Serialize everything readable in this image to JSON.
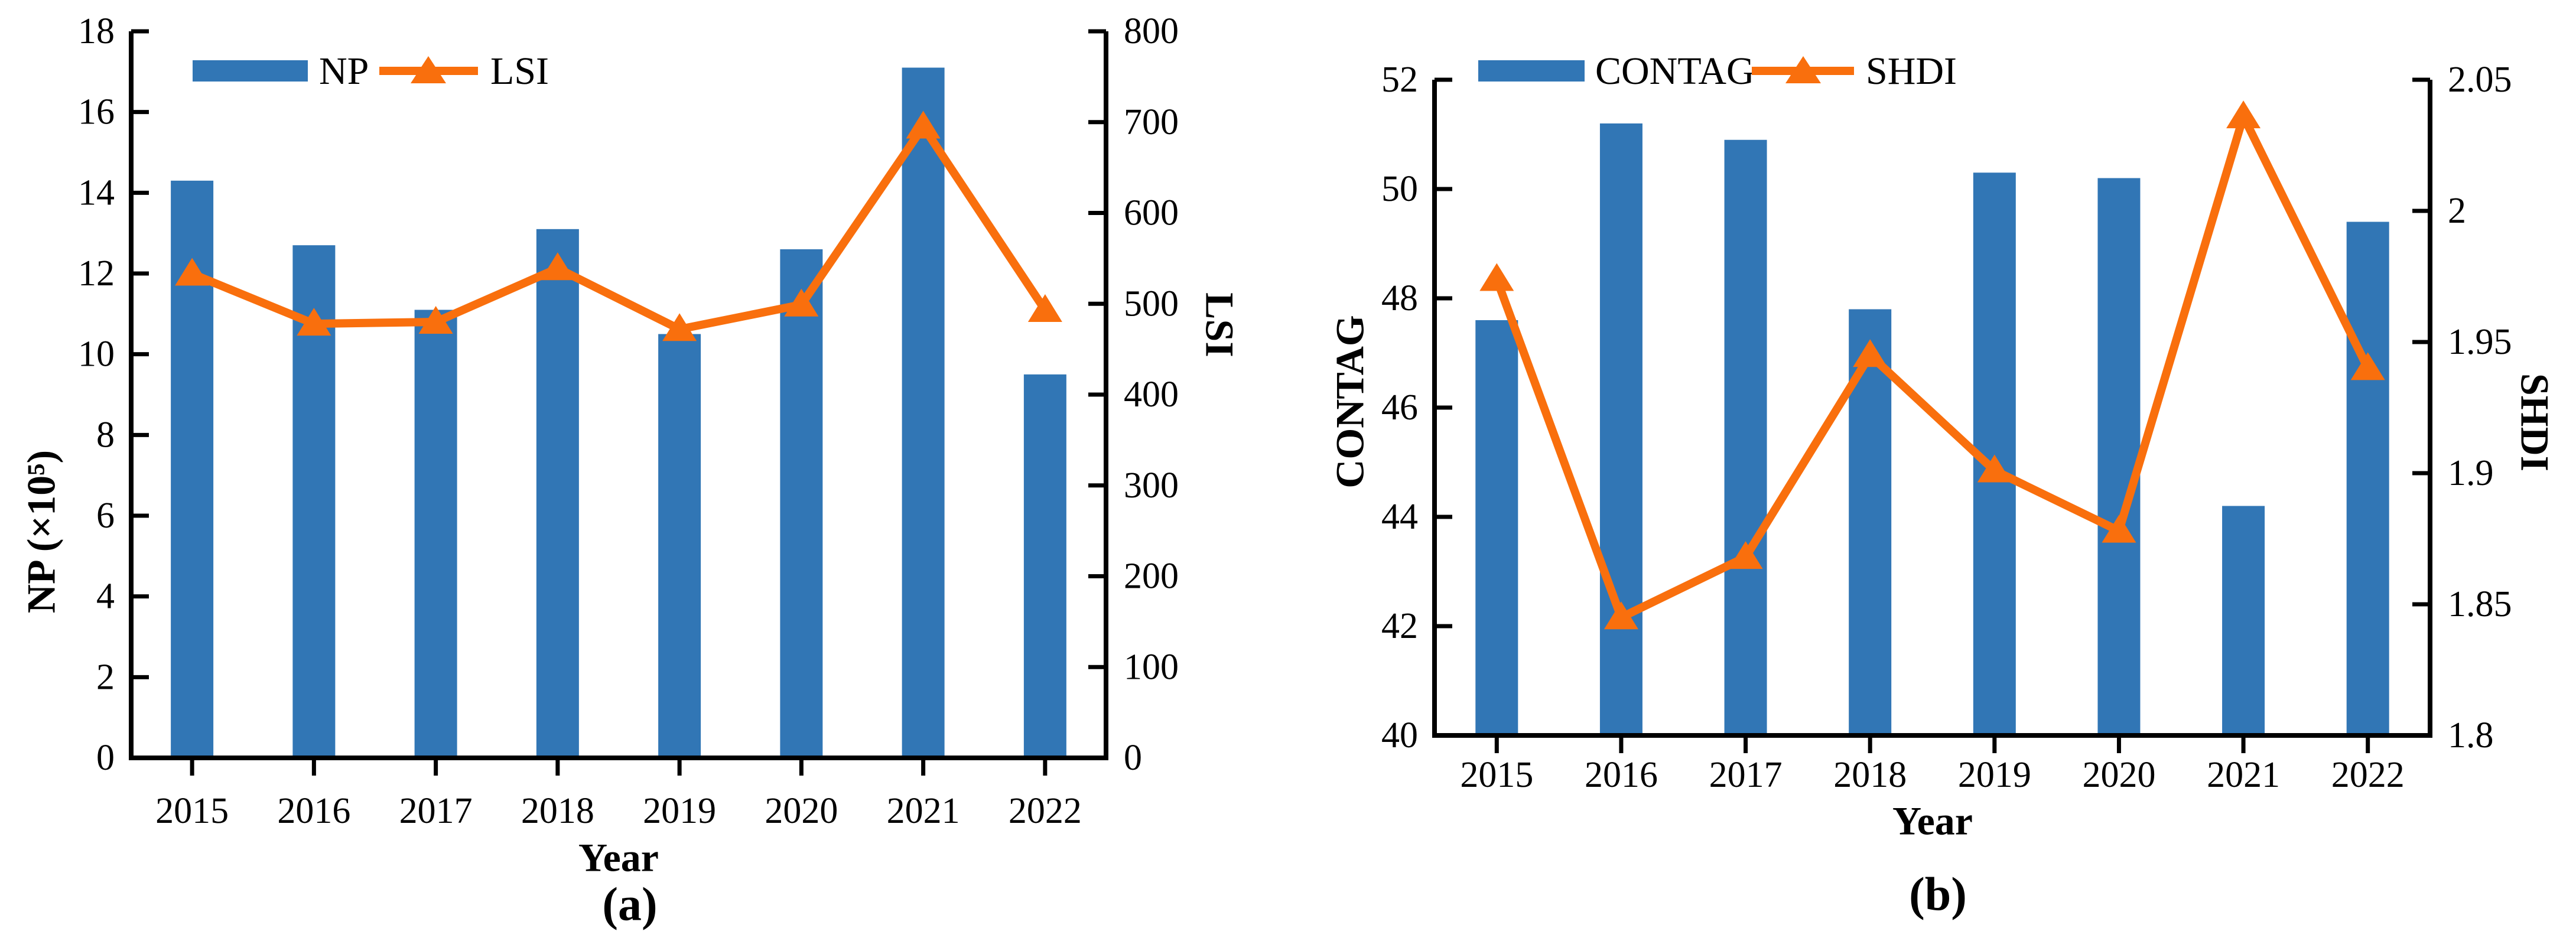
{
  "colors": {
    "bar_blue": "#3176B5",
    "line_orange": "#F96F0D",
    "axis_black": "#000000",
    "background": "#FFFFFF"
  },
  "panels": [
    {
      "caption": "(a)",
      "xlabel": "Year",
      "legend": [
        {
          "label": "NP",
          "marker": "bar-swatch"
        },
        {
          "label": "LSI",
          "marker": "line-with-triangle"
        }
      ],
      "left_axis": {
        "title": "NP (×10⁵)",
        "tick_labels": [
          "0",
          "2",
          "4",
          "6",
          "8",
          "10",
          "12",
          "14",
          "16",
          "18"
        ]
      },
      "right_axis": {
        "title": "LSI",
        "tick_labels": [
          "0",
          "100",
          "200",
          "300",
          "400",
          "500",
          "600",
          "700",
          "800"
        ]
      },
      "x_tick_labels": [
        "2015",
        "2016",
        "2017",
        "2018",
        "2019",
        "2020",
        "2021",
        "2022"
      ]
    },
    {
      "caption": "(b)",
      "xlabel": "Year",
      "legend": [
        {
          "label": "CONTAG",
          "marker": "bar-swatch"
        },
        {
          "label": "SHDI",
          "marker": "line-with-triangle"
        }
      ],
      "left_axis": {
        "title": "CONTAG",
        "tick_labels": [
          "40",
          "42",
          "44",
          "46",
          "48",
          "50",
          "52"
        ]
      },
      "right_axis": {
        "title": "SHDI",
        "tick_labels": [
          "1.8",
          "1.85",
          "1.9",
          "1.95",
          "2",
          "2.05"
        ]
      },
      "x_tick_labels": [
        "2015",
        "2016",
        "2017",
        "2018",
        "2019",
        "2020",
        "2021",
        "2022"
      ]
    }
  ],
  "chart_data": [
    {
      "type": "bar+line",
      "panel": "a",
      "title": "",
      "xlabel": "Year",
      "categories": [
        "2015",
        "2016",
        "2017",
        "2018",
        "2019",
        "2020",
        "2021",
        "2022"
      ],
      "series": [
        {
          "name": "NP",
          "type": "bar",
          "axis": "left",
          "values": [
            14.3,
            12.7,
            11.1,
            13.1,
            10.5,
            12.6,
            17.1,
            9.5
          ]
        },
        {
          "name": "LSI",
          "type": "line",
          "axis": "right",
          "values": [
            533,
            478,
            480,
            539,
            472,
            499,
            695,
            493
          ]
        }
      ],
      "left_axis_label": "NP (×10⁵)",
      "right_axis_label": "LSI",
      "left_ylim": [
        0,
        18
      ],
      "left_step": 2,
      "right_ylim": [
        0,
        800
      ],
      "right_step": 100,
      "grid": false,
      "legend_position": "top"
    },
    {
      "type": "bar+line",
      "panel": "b",
      "title": "",
      "xlabel": "Year",
      "categories": [
        "2015",
        "2016",
        "2017",
        "2018",
        "2019",
        "2020",
        "2021",
        "2022"
      ],
      "series": [
        {
          "name": "CONTAG",
          "type": "bar",
          "axis": "left",
          "values": [
            47.6,
            51.2,
            50.9,
            47.8,
            50.3,
            50.2,
            44.2,
            49.4
          ]
        },
        {
          "name": "SHDI",
          "type": "line",
          "axis": "right",
          "values": [
            1.974,
            1.845,
            1.868,
            1.945,
            1.901,
            1.878,
            2.036,
            1.94
          ]
        }
      ],
      "left_axis_label": "CONTAG",
      "right_axis_label": "SHDI",
      "left_ylim": [
        40,
        52
      ],
      "left_step": 2,
      "right_ylim": [
        1.8,
        2.05
      ],
      "right_step": 0.05,
      "grid": false,
      "legend_position": "top"
    }
  ]
}
